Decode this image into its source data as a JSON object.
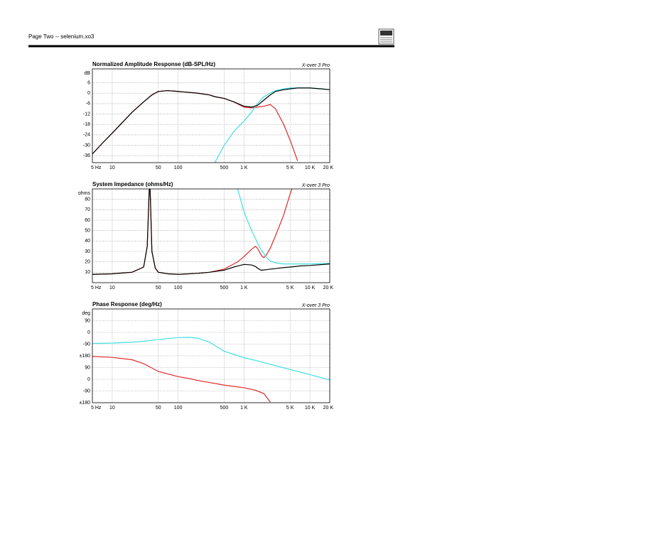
{
  "header": {
    "title": "Page Two -- selenium.xo3"
  },
  "chart_data": [
    {
      "type": "line",
      "title": "Normalized Amplitude Response (dB-SPL/Hz)",
      "annotation": "X-over 3 Pro",
      "ylabel": "dB",
      "xscale": "log",
      "grid": true,
      "xlim": [
        5,
        20000
      ],
      "ylim": [
        -40,
        14
      ],
      "xticks": [
        {
          "value": 5,
          "label": "5 Hz"
        },
        10,
        50,
        100,
        500,
        {
          "value": 1000,
          "label": "1 K"
        },
        {
          "value": 5000,
          "label": "5 K"
        },
        {
          "value": 10000,
          "label": "10 K"
        },
        {
          "value": 20000,
          "label": "20 K"
        }
      ],
      "yticks": [
        6,
        0,
        -6,
        -12,
        -18,
        -24,
        -30,
        -36
      ],
      "x": [
        5,
        7,
        10,
        15,
        20,
        30,
        40,
        50,
        70,
        100,
        200,
        300,
        360,
        500,
        700,
        1000,
        1300,
        1600,
        2000,
        2500,
        3000,
        4000,
        5000,
        6500,
        10000,
        15000,
        20000
      ],
      "series": [
        {
          "color": "#e02828",
          "values": [
            -35,
            -29,
            -23,
            -16,
            -11,
            -5,
            -1,
            1,
            1.5,
            1,
            0,
            -1,
            -2,
            -3,
            -5,
            -8,
            -8.5,
            -8,
            -7.5,
            -6.5,
            -9,
            -18,
            -27,
            -39,
            null,
            null,
            null
          ]
        },
        {
          "color": "#40e0e0",
          "values": [
            null,
            null,
            null,
            null,
            null,
            null,
            null,
            null,
            null,
            null,
            null,
            null,
            -40,
            -30,
            -22,
            -16,
            -11,
            -6,
            -2,
            0,
            1.5,
            2.5,
            3,
            3,
            3,
            2.5,
            2
          ]
        },
        {
          "color": "#000000",
          "values": [
            -35,
            -29,
            -23,
            -16,
            -11,
            -5,
            -1,
            1,
            1.5,
            1,
            0,
            -1,
            -2,
            -3,
            -5,
            -7.5,
            -8,
            -7,
            -4,
            -1,
            1,
            2,
            2.5,
            3,
            3,
            2.5,
            2
          ]
        }
      ]
    },
    {
      "type": "line",
      "title": "System Impedance (ohms/Hz)",
      "annotation": "X-over 3 Pro",
      "ylabel": "ohms",
      "xscale": "log",
      "grid": true,
      "xlim": [
        5,
        20000
      ],
      "ylim": [
        0,
        90
      ],
      "xticks": [
        {
          "value": 5,
          "label": "5 Hz"
        },
        10,
        50,
        100,
        500,
        {
          "value": 1000,
          "label": "1 K"
        },
        {
          "value": 5000,
          "label": "5 K"
        },
        {
          "value": 10000,
          "label": "10 K"
        },
        {
          "value": 20000,
          "label": "20 K"
        }
      ],
      "yticks": [
        80,
        70,
        60,
        50,
        40,
        30,
        20,
        10
      ],
      "x": [
        5,
        10,
        20,
        30,
        34,
        36,
        37,
        38,
        40,
        45,
        50,
        70,
        100,
        200,
        300,
        500,
        700,
        800,
        1000,
        1300,
        1500,
        1600,
        1700,
        1800,
        1900,
        2000,
        2200,
        2500,
        3000,
        4000,
        5000,
        6000,
        7000,
        10000,
        20000
      ],
      "series": [
        {
          "color": "#e02828",
          "values": [
            8,
            8.5,
            10,
            15,
            35,
            80,
            100,
            80,
            30,
            14,
            10,
            8.5,
            8,
            9,
            10,
            13,
            18,
            20,
            25,
            32,
            35,
            33,
            30,
            27,
            25,
            24,
            27,
            33,
            45,
            65,
            85,
            100,
            null,
            null,
            null
          ]
        },
        {
          "color": "#40e0e0",
          "values": [
            null,
            null,
            null,
            null,
            null,
            null,
            null,
            null,
            null,
            null,
            null,
            null,
            null,
            null,
            null,
            null,
            null,
            90,
            68,
            50,
            42,
            38,
            35,
            32,
            30,
            28,
            24,
            21,
            19,
            18,
            18,
            18,
            18,
            18,
            18.5
          ]
        },
        {
          "color": "#000000",
          "values": [
            8,
            8.5,
            10,
            15,
            35,
            80,
            100,
            80,
            30,
            14,
            10,
            8.5,
            8,
            9,
            10,
            12,
            15,
            16,
            17.5,
            17,
            15.5,
            14,
            13,
            12,
            12,
            12.2,
            12.5,
            13,
            13.5,
            14.5,
            15,
            15.5,
            16,
            16.5,
            18
          ]
        }
      ]
    },
    {
      "type": "line",
      "title": "Phase Response (deg/Hz)",
      "annotation": "X-over 3 Pro",
      "ylabel": "deg",
      "xscale": "log",
      "grid": true,
      "xlim": [
        5,
        20000
      ],
      "ylim": [
        -540,
        180
      ],
      "xticks": [
        {
          "value": 5,
          "label": "5 Hz"
        },
        10,
        50,
        100,
        500,
        {
          "value": 1000,
          "label": "1 K"
        },
        {
          "value": 5000,
          "label": "5 K"
        },
        {
          "value": 10000,
          "label": "10 K"
        },
        {
          "value": 20000,
          "label": "20 K"
        }
      ],
      "yticks": [
        90,
        0,
        -90,
        {
          "value": -180,
          "label": "±180"
        },
        {
          "value": -270,
          "label": "90"
        },
        {
          "value": -360,
          "label": "0"
        },
        {
          "value": -450,
          "label": "-90"
        },
        {
          "value": -540,
          "label": "±180"
        }
      ],
      "x": [
        5,
        10,
        20,
        30,
        50,
        100,
        150,
        200,
        300,
        500,
        1000,
        1500,
        2000,
        2500,
        5000,
        10000,
        20000
      ],
      "series": [
        {
          "color": "#40e0e0",
          "values": [
            -85,
            -82,
            -75,
            -68,
            -55,
            -40,
            -38,
            -45,
            -75,
            -145,
            -195,
            -215,
            -232,
            -245,
            -285,
            -325,
            -365
          ]
        },
        {
          "color": "#e02828",
          "values": [
            -185,
            -192,
            -210,
            -240,
            -300,
            -340,
            -355,
            -370,
            -385,
            -405,
            -425,
            -445,
            -470,
            -535,
            null,
            null,
            null
          ]
        }
      ]
    }
  ]
}
